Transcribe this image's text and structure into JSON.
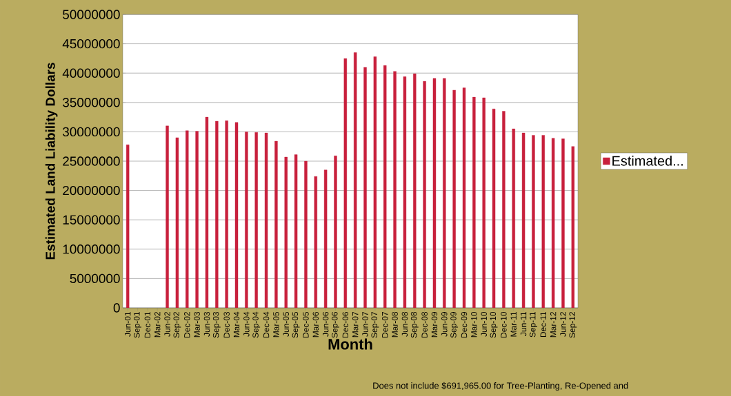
{
  "chart_data": {
    "type": "bar",
    "xlabel": "Month",
    "ylabel": "Estimated Land Liability Dollars",
    "categories": [
      "Jun-01",
      "Sep-01",
      "Dec-01",
      "Mar-02",
      "Jun-02",
      "Sep-02",
      "Dec-02",
      "Mar-03",
      "Jun-03",
      "Sep-03",
      "Dec-03",
      "Mar-04",
      "Jun-04",
      "Sep-04",
      "Dec-04",
      "Mar-05",
      "Jun-05",
      "Sep-05",
      "Dec-05",
      "Mar-06",
      "Jun-06",
      "Sep-06",
      "Dec-06",
      "Mar-07",
      "Jun-07",
      "Sep-07",
      "Dec-07",
      "Mar-08",
      "Jun-08",
      "Sep-08",
      "Dec-08",
      "Mar-09",
      "Jun-09",
      "Sep-09",
      "Dec-09",
      "Mar-10",
      "Jun-10",
      "Sep-10",
      "Dec-10",
      "Mar-11",
      "Jun-11",
      "Sep-11",
      "Dec-11",
      "Mar-12",
      "Jun-12",
      "Sep-12"
    ],
    "series": [
      {
        "name": "Estimated...",
        "color": "#c8203c",
        "values": [
          27800000,
          null,
          null,
          null,
          31000000,
          29000000,
          30200000,
          30100000,
          32500000,
          31800000,
          31900000,
          31600000,
          30000000,
          29900000,
          29800000,
          28400000,
          25700000,
          26100000,
          25000000,
          22400000,
          23500000,
          25900000,
          42500000,
          43500000,
          41000000,
          42800000,
          41300000,
          40300000,
          39400000,
          39900000,
          38600000,
          39100000,
          39100000,
          37100000,
          37500000,
          35900000,
          35800000,
          33900000,
          33500000,
          30500000,
          29800000,
          29400000,
          29400000,
          28900000,
          28800000,
          27500000
        ]
      }
    ],
    "ylim": [
      0,
      50000000
    ],
    "yticks": [
      0,
      5000000,
      10000000,
      15000000,
      20000000,
      25000000,
      30000000,
      35000000,
      40000000,
      45000000,
      50000000
    ],
    "grid": "y",
    "legend": "right",
    "annotations": [
      "Does not include $691,965.00 for Tree-Planting, Re-Opened and"
    ]
  }
}
